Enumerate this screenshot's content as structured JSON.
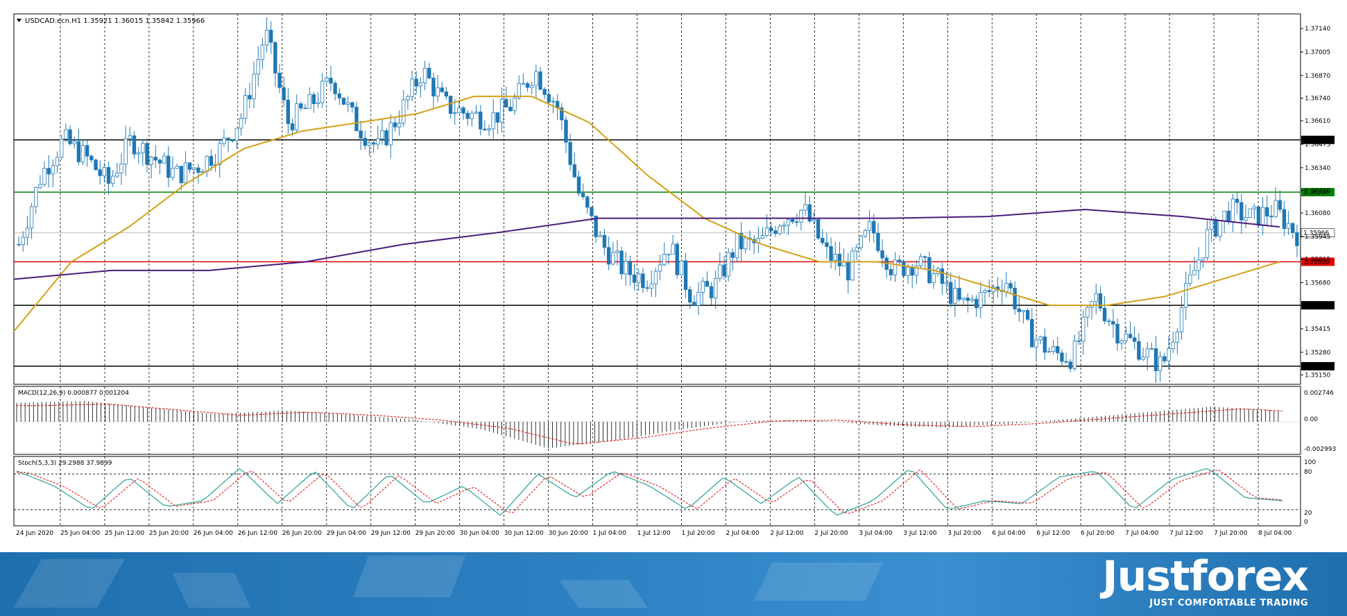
{
  "header": {
    "symbol_info": "USDCAD.ecn.H1  1.35921 1.36015 1.35842 1.35966"
  },
  "macd": {
    "label": "MACD(12,26,9) 0.000877 0.001204",
    "ticks": [
      "0.002746",
      "0.00",
      "-0.002993"
    ]
  },
  "stoch": {
    "label": "Stoch(5,3,3) 29.2988 37.9899",
    "ticks": [
      "100",
      "80",
      "20",
      "0"
    ]
  },
  "brand": {
    "name": "Justforex",
    "tagline": "JUST COMFORTABLE TRADING"
  },
  "colors": {
    "bull": "#1f77b4",
    "ma_short": "#d4a017",
    "ma_long": "#4b1a7a",
    "resistance": "#008000",
    "support": "#e00000",
    "level": "#000000"
  },
  "chart_data": {
    "type": "candlestick",
    "symbol": "USDCAD.ecn",
    "timeframe": "H1",
    "y_ticks": [
      "1.37140",
      "1.37005",
      "1.36870",
      "1.36740",
      "1.36610",
      "1.36475",
      "1.36340",
      "1.36210",
      "1.36080",
      "1.35945",
      "1.35815",
      "1.35680",
      "1.35550",
      "1.35415",
      "1.35280",
      "1.35150"
    ],
    "x_labels": [
      "24 Jun 2020",
      "25 Jun 04:00",
      "25 Jun 12:00",
      "25 Jun 20:00",
      "26 Jun 04:00",
      "26 Jun 12:00",
      "26 Jun 20:00",
      "29 Jun 04:00",
      "29 Jun 12:00",
      "29 Jun 20:00",
      "30 Jun 04:00",
      "30 Jun 12:00",
      "30 Jun 20:00",
      "1 Jul 04:00",
      "1 Jul 12:00",
      "1 Jul 20:00",
      "2 Jul 04:00",
      "2 Jul 12:00",
      "2 Jul 20:00",
      "3 Jul 04:00",
      "3 Jul 12:00",
      "3 Jul 20:00",
      "6 Jul 04:00",
      "6 Jul 12:00",
      "6 Jul 20:00",
      "7 Jul 04:00",
      "7 Jul 12:00",
      "7 Jul 20:00",
      "8 Jul 04:00"
    ],
    "horizontal_levels": [
      {
        "value": "1.36500",
        "color": "#000000"
      },
      {
        "value": "1.36200",
        "color": "#008000"
      },
      {
        "value": "1.35800",
        "color": "#e00000"
      },
      {
        "value": "1.35550",
        "color": "#000000"
      },
      {
        "value": "1.35200",
        "color": "#000000"
      }
    ],
    "current_price": "1.35966",
    "close_path": [
      1.359,
      1.363,
      1.365,
      1.364,
      1.3625,
      1.365,
      1.364,
      1.363,
      1.3635,
      1.3645,
      1.3665,
      1.3712,
      1.366,
      1.367,
      1.3685,
      1.366,
      1.3645,
      1.3665,
      1.369,
      1.367,
      1.3665,
      1.3662,
      1.367,
      1.369,
      1.367,
      1.3618,
      1.359,
      1.3575,
      1.357,
      1.359,
      1.356,
      1.3565,
      1.359,
      1.359,
      1.3605,
      1.361,
      1.3585,
      1.3575,
      1.36,
      1.3575,
      1.358,
      1.357,
      1.3555,
      1.356,
      1.357,
      1.354,
      1.3528,
      1.3525,
      1.356,
      1.354,
      1.353,
      1.352,
      1.356,
      1.3595,
      1.361,
      1.3605,
      1.361,
      1.3596
    ],
    "ma_short_path": [
      1.354,
      1.358,
      1.36,
      1.3625,
      1.3645,
      1.3655,
      1.366,
      1.3665,
      1.3675,
      1.3675,
      1.366,
      1.363,
      1.3605,
      1.359,
      1.358,
      1.358,
      1.3575,
      1.3565,
      1.3555,
      1.3555,
      1.356,
      1.357,
      1.358
    ],
    "ma_long_path": [
      1.357,
      1.3575,
      1.3575,
      1.358,
      1.359,
      1.3597,
      1.3605,
      1.3605,
      1.3605,
      1.3605,
      1.3606,
      1.361,
      1.3606,
      1.36
    ],
    "macd_path": [
      0.002,
      0.0022,
      0.0015,
      0.0008,
      0.0012,
      0.0008,
      0.0002,
      -0.0008,
      -0.0028,
      -0.002,
      -0.0008,
      0.0001,
      0.0002,
      -0.0004,
      -0.0006,
      -0.0002,
      0.0004,
      0.001,
      0.0016,
      0.0012
    ],
    "stoch_path": [
      85,
      60,
      20,
      75,
      25,
      35,
      90,
      30,
      85,
      20,
      80,
      30,
      60,
      10,
      80,
      40,
      85,
      60,
      20,
      75,
      30,
      75,
      10,
      35,
      90,
      20,
      35,
      30,
      75,
      85,
      20,
      70,
      90,
      40,
      35
    ]
  }
}
